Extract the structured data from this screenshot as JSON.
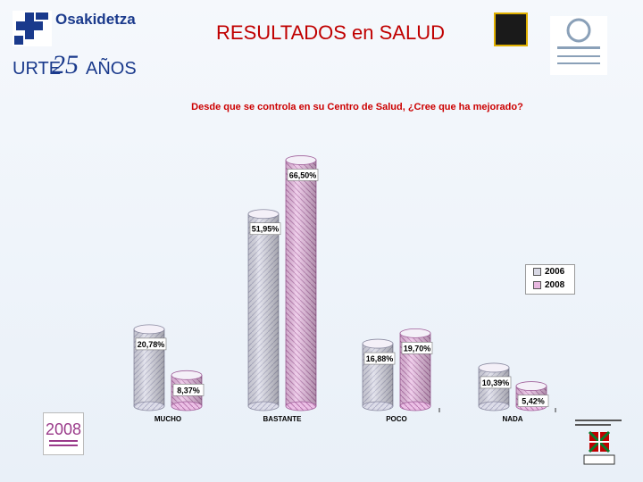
{
  "header": {
    "title": "RESULTADOS en SALUD",
    "brand": "Osakidetza",
    "anniversary_urte": "URTE",
    "anniversary_num": "25",
    "anniversary_anos": "AÑOS"
  },
  "colors": {
    "title": "#c00000",
    "question": "#cc0000",
    "series_2006": "#d8d8e4",
    "series_2008": "#e8b8e0",
    "brand_blue": "#1a3a8c"
  },
  "icons": [
    "osakidetza-cross-icon",
    "certification-badge-icon",
    "euskadi-award-icon",
    "anniversary-2008-logo-icon",
    "basque-government-logo-icon"
  ],
  "chart_data": {
    "type": "bar",
    "title": "Desde que se controla en su Centro de Salud, ¿Cree que ha mejorado?",
    "categories": [
      "MUCHO",
      "BASTANTE",
      "POCO",
      "NADA"
    ],
    "series": [
      {
        "name": "2006",
        "values": [
          20.78,
          51.95,
          16.88,
          10.39
        ],
        "labels": [
          "20,78%",
          "51,95%",
          "16,88%",
          "10,39%"
        ]
      },
      {
        "name": "2008",
        "values": [
          8.37,
          66.5,
          19.7,
          5.42
        ],
        "labels": [
          "8,37%",
          "66,50%",
          "19,70%",
          "5,42%"
        ]
      }
    ],
    "ylim": [
      0,
      70
    ],
    "legend": "right",
    "grid": false
  }
}
